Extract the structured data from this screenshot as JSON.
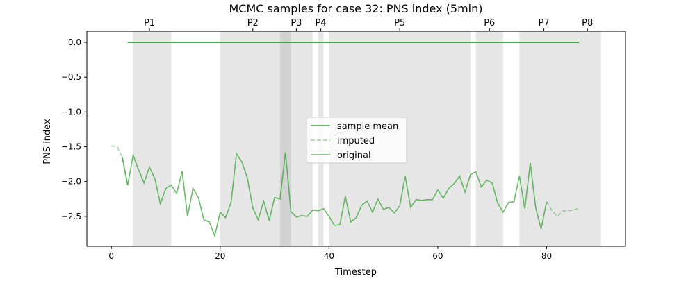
{
  "chart_data": {
    "type": "line",
    "title": "MCMC samples for case 32: PNS index (5min)",
    "xlabel": "Timestep",
    "ylabel": "PNS index",
    "xlim": [
      -4.5,
      94.5
    ],
    "ylim": [
      -2.93,
      0.16
    ],
    "xticks": [
      0,
      20,
      40,
      60,
      80
    ],
    "yticks": [
      0.0,
      -0.5,
      -1.0,
      -1.5,
      -2.0,
      -2.5
    ],
    "ytick_labels": [
      "0.0",
      "−0.5",
      "−1.0",
      "−1.5",
      "−2.0",
      "−2.5"
    ],
    "grid": false,
    "legend_position": "center",
    "periods": [
      {
        "label": "P1",
        "start": 4,
        "end": 11,
        "label_x": 7
      },
      {
        "label": "P2",
        "start": 20,
        "end": 33,
        "label_x": 26
      },
      {
        "label": "P3",
        "start": 31,
        "end": 37,
        "label_x": 34
      },
      {
        "label": "P4",
        "start": 38,
        "end": 39,
        "label_x": 38.5
      },
      {
        "label": "P5",
        "start": 40,
        "end": 66,
        "label_x": 53
      },
      {
        "label": "P6",
        "start": 67,
        "end": 72,
        "label_x": 69.5
      },
      {
        "label": "P7",
        "start": 75,
        "end": 84,
        "label_x": 79.5
      },
      {
        "label": "P8",
        "start": 84,
        "end": 90,
        "label_x": 87.5
      }
    ],
    "series": [
      {
        "name": "sample mean",
        "color": "#2ca02c",
        "style": "solid",
        "x": [
          3,
          86
        ],
        "y": [
          0.0,
          0.0
        ]
      },
      {
        "name": "imputed",
        "color": "#2ca02c",
        "style": "dashed",
        "opacity": 0.45,
        "x": [
          0,
          1,
          2,
          3
        ],
        "y": [
          -1.49,
          -1.49,
          -1.65,
          -2.05
        ],
        "x2": [
          80,
          81,
          82,
          83,
          84,
          85,
          86
        ],
        "y2": [
          -2.29,
          -2.42,
          -2.5,
          -2.42,
          -2.42,
          -2.41,
          -2.38
        ]
      },
      {
        "name": "original",
        "color": "#2ca02c",
        "style": "solid",
        "opacity": 0.7,
        "x": [
          2,
          3,
          4,
          5,
          6,
          7,
          8,
          9,
          10,
          11,
          12,
          13,
          14,
          15,
          16,
          17,
          18,
          19,
          20,
          21,
          22,
          23,
          24,
          25,
          26,
          27,
          28,
          29,
          30,
          31,
          32,
          33,
          34,
          35,
          36,
          37,
          38,
          39,
          40,
          41,
          42,
          43,
          44,
          45,
          46,
          47,
          48,
          49,
          50,
          51,
          52,
          53,
          54,
          55,
          56,
          57,
          58,
          59,
          60,
          61,
          62,
          63,
          64,
          65,
          66,
          67,
          68,
          69,
          70,
          71,
          72,
          73,
          74,
          75,
          76,
          77,
          78,
          79,
          80
        ],
        "y": [
          -1.65,
          -2.05,
          -1.62,
          -1.83,
          -2.02,
          -1.79,
          -1.96,
          -2.32,
          -2.1,
          -2.05,
          -2.17,
          -1.85,
          -2.5,
          -2.1,
          -2.23,
          -2.55,
          -2.58,
          -2.78,
          -2.44,
          -2.52,
          -2.3,
          -1.6,
          -1.72,
          -1.95,
          -2.38,
          -2.55,
          -2.28,
          -2.56,
          -2.23,
          -2.25,
          -1.58,
          -2.43,
          -2.51,
          -2.49,
          -2.5,
          -2.41,
          -2.42,
          -2.39,
          -2.5,
          -2.63,
          -2.62,
          -2.21,
          -2.58,
          -2.52,
          -2.34,
          -2.28,
          -2.44,
          -2.25,
          -2.4,
          -2.37,
          -2.45,
          -2.35,
          -1.92,
          -2.37,
          -2.26,
          -2.27,
          -2.26,
          -2.26,
          -2.12,
          -2.24,
          -2.1,
          -2.03,
          -1.92,
          -2.15,
          -1.9,
          -1.86,
          -2.08,
          -1.98,
          -2.02,
          -2.31,
          -2.44,
          -2.3,
          -2.29,
          -1.92,
          -2.39,
          -1.73,
          -2.38,
          -2.68,
          -2.29
        ]
      }
    ]
  }
}
